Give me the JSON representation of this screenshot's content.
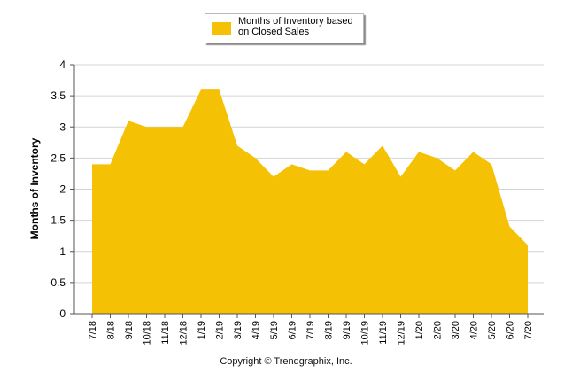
{
  "chart_data": {
    "type": "area",
    "title": "",
    "xlabel": "",
    "ylabel": "Months of Inventory",
    "ylim": [
      0,
      4
    ],
    "yticks": [
      "0",
      "0.5",
      "1",
      "1.5",
      "2",
      "2.5",
      "3",
      "3.5",
      "4"
    ],
    "grid": true,
    "legend_position": "top-center",
    "categories": [
      "7/18",
      "8/18",
      "9/18",
      "10/18",
      "11/18",
      "12/18",
      "1/19",
      "2/19",
      "3/19",
      "4/19",
      "5/19",
      "6/19",
      "7/19",
      "8/19",
      "9/19",
      "10/19",
      "11/19",
      "12/19",
      "1/20",
      "2/20",
      "3/20",
      "4/20",
      "5/20",
      "6/20",
      "7/20"
    ],
    "series": [
      {
        "name": "Months of Inventory based on Closed Sales",
        "color": "#f5c104",
        "values": [
          2.4,
          2.4,
          3.1,
          3.0,
          3.0,
          3.0,
          3.6,
          3.6,
          2.7,
          2.5,
          2.2,
          2.4,
          2.3,
          2.3,
          2.6,
          2.4,
          2.7,
          2.2,
          2.6,
          2.5,
          2.3,
          2.6,
          2.4,
          1.4,
          1.1
        ]
      }
    ]
  },
  "legend": {
    "line1": "Months of Inventory based",
    "line2": "on Closed Sales"
  },
  "footer": {
    "copyright": "Copyright © Trendgraphix, Inc."
  }
}
